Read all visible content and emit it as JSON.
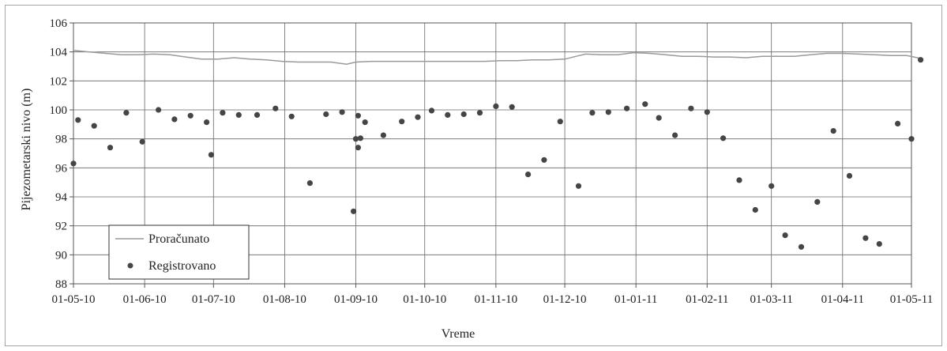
{
  "chart_data": {
    "type": "line",
    "title": "",
    "xlabel": "Vreme",
    "ylabel": "Pijezometarski nivo (m)",
    "ylim": [
      88,
      106
    ],
    "y_ticks": [
      "88",
      "90",
      "92",
      "94",
      "96",
      "98",
      "100",
      "102",
      "104",
      "106"
    ],
    "xlim": [
      "2010-05-01",
      "2011-05-01"
    ],
    "x_ticks": [
      "01-05-10",
      "01-06-10",
      "01-07-10",
      "01-08-10",
      "01-09-10",
      "01-10-10",
      "01-11-10",
      "01-12-10",
      "01-01-11",
      "01-02-11",
      "01-03-11",
      "01-04-11",
      "01-05-11"
    ],
    "grid": true,
    "legend_position": "bottom-left",
    "series": [
      {
        "name": "Proračunato",
        "style": "line",
        "color": "#9a9a9a",
        "points": [
          [
            "2010-05-01",
            104.1
          ],
          [
            "2010-05-08",
            104.0
          ],
          [
            "2010-05-15",
            103.9
          ],
          [
            "2010-05-22",
            103.8
          ],
          [
            "2010-05-29",
            103.8
          ],
          [
            "2010-06-05",
            103.85
          ],
          [
            "2010-06-12",
            103.8
          ],
          [
            "2010-06-19",
            103.65
          ],
          [
            "2010-06-26",
            103.5
          ],
          [
            "2010-07-03",
            103.5
          ],
          [
            "2010-07-10",
            103.6
          ],
          [
            "2010-07-17",
            103.5
          ],
          [
            "2010-07-24",
            103.45
          ],
          [
            "2010-07-31",
            103.35
          ],
          [
            "2010-08-07",
            103.3
          ],
          [
            "2010-08-14",
            103.3
          ],
          [
            "2010-08-21",
            103.3
          ],
          [
            "2010-08-28",
            103.15
          ],
          [
            "2010-09-01",
            103.3
          ],
          [
            "2010-09-08",
            103.35
          ],
          [
            "2010-09-15",
            103.35
          ],
          [
            "2010-09-22",
            103.35
          ],
          [
            "2010-09-29",
            103.35
          ],
          [
            "2010-10-06",
            103.35
          ],
          [
            "2010-10-13",
            103.35
          ],
          [
            "2010-10-20",
            103.35
          ],
          [
            "2010-10-27",
            103.35
          ],
          [
            "2010-11-03",
            103.4
          ],
          [
            "2010-11-10",
            103.4
          ],
          [
            "2010-11-17",
            103.45
          ],
          [
            "2010-11-24",
            103.45
          ],
          [
            "2010-12-01",
            103.5
          ],
          [
            "2010-12-06",
            103.7
          ],
          [
            "2010-12-10",
            103.85
          ],
          [
            "2010-12-17",
            103.8
          ],
          [
            "2010-12-24",
            103.8
          ],
          [
            "2010-12-31",
            103.95
          ],
          [
            "2011-01-07",
            103.9
          ],
          [
            "2011-01-14",
            103.8
          ],
          [
            "2011-01-21",
            103.7
          ],
          [
            "2011-01-28",
            103.7
          ],
          [
            "2011-02-04",
            103.65
          ],
          [
            "2011-02-11",
            103.65
          ],
          [
            "2011-02-18",
            103.6
          ],
          [
            "2011-02-25",
            103.7
          ],
          [
            "2011-03-04",
            103.7
          ],
          [
            "2011-03-11",
            103.7
          ],
          [
            "2011-03-18",
            103.8
          ],
          [
            "2011-03-25",
            103.9
          ],
          [
            "2011-04-01",
            103.9
          ],
          [
            "2011-04-08",
            103.85
          ],
          [
            "2011-04-15",
            103.8
          ],
          [
            "2011-04-22",
            103.75
          ],
          [
            "2011-04-29",
            103.75
          ],
          [
            "2011-05-05",
            103.55
          ]
        ]
      },
      {
        "name": "Registrovano",
        "style": "markers",
        "color": "#454545",
        "points": [
          [
            "2010-05-01",
            96.3
          ],
          [
            "2010-05-03",
            99.3
          ],
          [
            "2010-05-10",
            98.9
          ],
          [
            "2010-05-17",
            97.4
          ],
          [
            "2010-05-24",
            99.8
          ],
          [
            "2010-05-31",
            97.8
          ],
          [
            "2010-06-07",
            100.0
          ],
          [
            "2010-06-14",
            99.35
          ],
          [
            "2010-06-21",
            99.6
          ],
          [
            "2010-06-28",
            99.15
          ],
          [
            "2010-06-30",
            96.9
          ],
          [
            "2010-07-05",
            99.8
          ],
          [
            "2010-07-12",
            99.65
          ],
          [
            "2010-07-20",
            99.65
          ],
          [
            "2010-07-28",
            100.1
          ],
          [
            "2010-08-04",
            99.55
          ],
          [
            "2010-08-12",
            94.95
          ],
          [
            "2010-08-19",
            99.7
          ],
          [
            "2010-08-26",
            99.85
          ],
          [
            "2010-09-02",
            99.6
          ],
          [
            "2010-08-31",
            93.0
          ],
          [
            "2010-09-01",
            98.0
          ],
          [
            "2010-09-02",
            97.4
          ],
          [
            "2010-09-03",
            98.05
          ],
          [
            "2010-09-05",
            99.15
          ],
          [
            "2010-09-13",
            98.25
          ],
          [
            "2010-09-21",
            99.2
          ],
          [
            "2010-09-28",
            99.5
          ],
          [
            "2010-10-04",
            99.95
          ],
          [
            "2010-10-11",
            99.65
          ],
          [
            "2010-10-18",
            99.7
          ],
          [
            "2010-10-25",
            99.8
          ],
          [
            "2010-11-01",
            100.25
          ],
          [
            "2010-11-08",
            100.2
          ],
          [
            "2010-11-15",
            95.55
          ],
          [
            "2010-11-22",
            96.55
          ],
          [
            "2010-11-29",
            99.2
          ],
          [
            "2010-12-07",
            94.75
          ],
          [
            "2010-12-13",
            99.8
          ],
          [
            "2010-12-20",
            99.85
          ],
          [
            "2010-12-28",
            100.1
          ],
          [
            "2011-01-05",
            100.4
          ],
          [
            "2011-01-11",
            99.45
          ],
          [
            "2011-01-18",
            98.25
          ],
          [
            "2011-01-25",
            100.1
          ],
          [
            "2011-02-01",
            99.85
          ],
          [
            "2011-02-08",
            98.05
          ],
          [
            "2011-02-15",
            95.15
          ],
          [
            "2011-02-22",
            93.1
          ],
          [
            "2011-03-01",
            94.75
          ],
          [
            "2011-03-07",
            91.35
          ],
          [
            "2011-03-14",
            90.55
          ],
          [
            "2011-03-21",
            93.65
          ],
          [
            "2011-03-28",
            98.55
          ],
          [
            "2011-04-04",
            95.45
          ],
          [
            "2011-04-11",
            91.15
          ],
          [
            "2011-04-17",
            90.75
          ],
          [
            "2011-04-25",
            99.05
          ],
          [
            "2011-05-01",
            98.0
          ],
          [
            "2011-05-05",
            103.45
          ]
        ]
      }
    ]
  }
}
